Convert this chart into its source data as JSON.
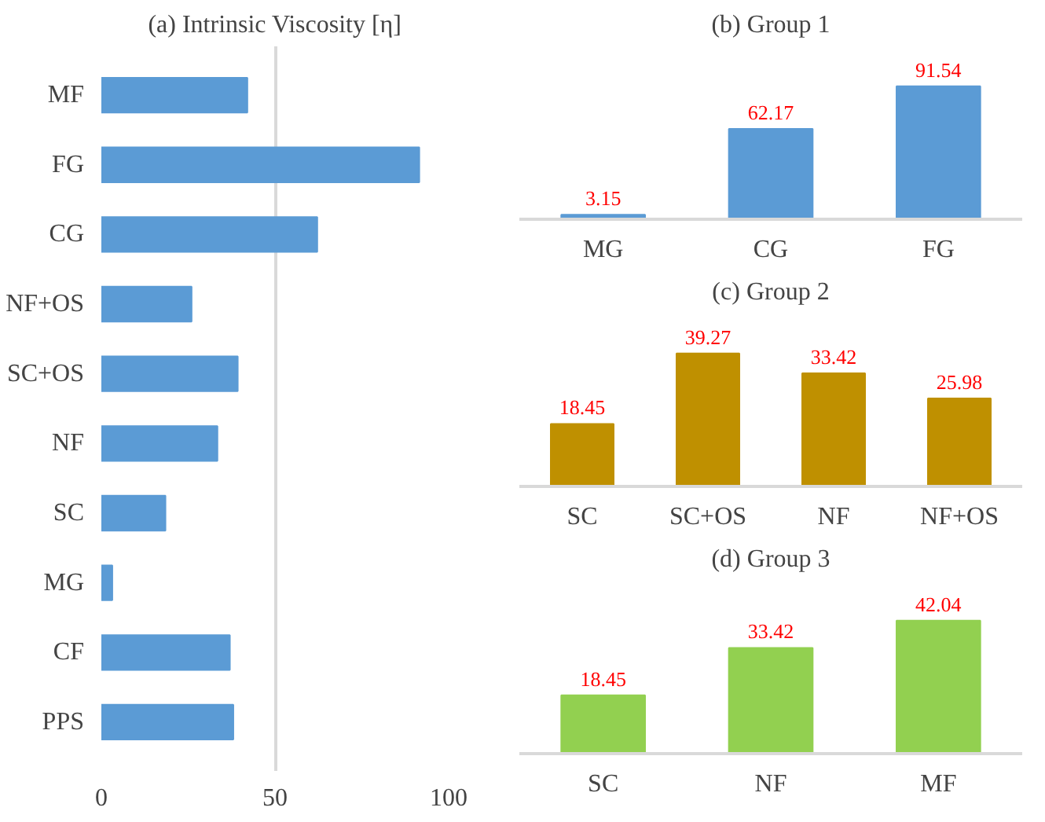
{
  "chart_data": [
    {
      "type": "bar",
      "title": "(a) Intrinsic Viscosity [η]",
      "orientation": "horizontal",
      "categories": [
        "MF",
        "FG",
        "CG",
        "NF+OS",
        "SC+OS",
        "NF",
        "SC",
        "MG",
        "CF",
        "PPS"
      ],
      "values": [
        42.04,
        91.54,
        62.17,
        25.98,
        39.27,
        33.42,
        18.45,
        3.15,
        37,
        38
      ],
      "color": "#5b9bd5",
      "xlim": [
        0,
        100
      ],
      "xticks": [
        0,
        50,
        100
      ],
      "grid": "x"
    },
    {
      "type": "bar",
      "title": "(b) Group 1",
      "categories": [
        "MG",
        "CG",
        "FG"
      ],
      "values": [
        3.15,
        62.17,
        91.54
      ],
      "color": "#5b9bd5",
      "data_labels": true
    },
    {
      "type": "bar",
      "title": "(c) Group 2",
      "categories": [
        "SC",
        "SC+OS",
        "NF",
        "NF+OS"
      ],
      "values": [
        18.45,
        39.27,
        33.42,
        25.98
      ],
      "color": "#bf9000",
      "data_labels": true
    },
    {
      "type": "bar",
      "title": "(d) Group 3",
      "categories": [
        "SC",
        "NF",
        "MF"
      ],
      "values": [
        18.45,
        33.42,
        42.04
      ],
      "color": "#92d050",
      "data_labels": true
    }
  ]
}
